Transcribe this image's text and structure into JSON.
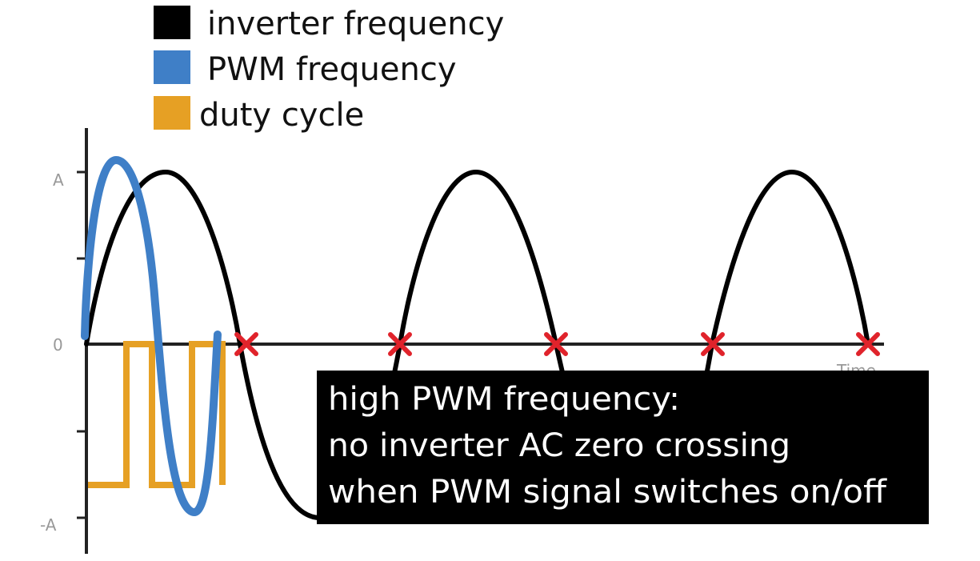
{
  "legend": [
    {
      "label": "inverter frequency",
      "color": "#000000"
    },
    {
      "label": "PWM frequency",
      "color": "#3f7fc7"
    },
    {
      "label": "duty cycle",
      "color": "#e6a024"
    }
  ],
  "axis": {
    "y_labels": {
      "top": "A",
      "zero": "0",
      "bottom": "-A"
    },
    "x_label": "Time",
    "color": "#222222"
  },
  "zero_crossing_marker": {
    "symbol": "x",
    "color": "#e0232b",
    "count": 5
  },
  "callout": {
    "lines": [
      "high PWM frequency:",
      "no inverter AC zero crossing",
      "when PWM signal switches on/off"
    ],
    "background": "#000000",
    "text_color": "#ffffff"
  }
}
